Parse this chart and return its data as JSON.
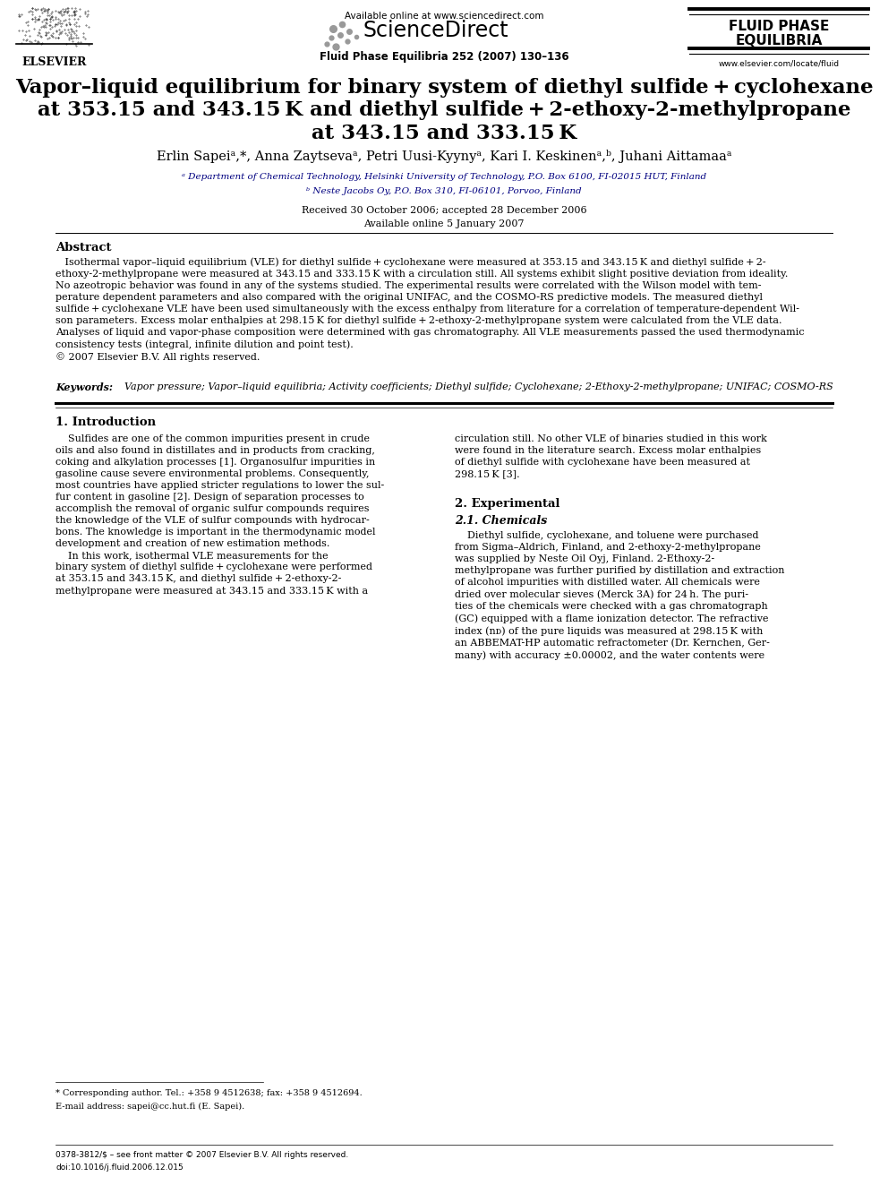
{
  "page_width": 9.92,
  "page_height": 13.23,
  "dpi": 100,
  "background_color": "#ffffff",
  "lm": 0.62,
  "rm": 0.62,
  "header": {
    "available_online": "Available online at www.sciencedirect.com",
    "journal_name": "Fluid Phase Equilibria 252 (2007) 130–136",
    "website": "www.elsevier.com/locate/fluid",
    "logo_line1": "FLUID PHASE",
    "logo_line2": "EQUILIBRIA"
  },
  "title_lines": [
    "Vapor–liquid equilibrium for binary system of diethyl sulfide + cyclohexane",
    "at 353.15 and 343.15 K and diethyl sulfide + 2-ethoxy-2-methylpropane",
    "at 343.15 and 333.15 K"
  ],
  "authors": "Erlin Sapeiᵃ,*, Anna Zaytsevaᵃ, Petri Uusi-Kyynyᵃ, Kari I. Keskinenᵃ,ᵇ, Juhani Aittamaaᵃ",
  "affil_a_color": "#000080",
  "affil_b_color": "#000080",
  "affil_a": "ᵃ Department of Chemical Technology, Helsinki University of Technology, P.O. Box 6100, FI-02015 HUT, Finland",
  "affil_b": "ᵇ Neste Jacobs Oy, P.O. Box 310, FI-06101, Porvoo, Finland",
  "received": "Received 30 October 2006; accepted 28 December 2006",
  "avail_online": "Available online 5 January 2007",
  "abstract_title": "Abstract",
  "abstract_body": "   Isothermal vapor–liquid equilibrium (VLE) for diethyl sulfide + cyclohexane were measured at 353.15 and 343.15 K and diethyl sulfide + 2-\nethoxy-2-methylpropane were measured at 343.15 and 333.15 K with a circulation still. All systems exhibit slight positive deviation from ideality.\nNo azeotropic behavior was found in any of the systems studied. The experimental results were correlated with the Wilson model with tem-\nperature dependent parameters and also compared with the original UNIFAC, and the COSMO-RS predictive models. The measured diethyl\nsulfide + cyclohexane VLE have been used simultaneously with the excess enthalpy from literature for a correlation of temperature-dependent Wil-\nson parameters. Excess molar enthalpies at 298.15 K for diethyl sulfide + 2-ethoxy-2-methylpropane system were calculated from the VLE data.\nAnalyses of liquid and vapor-phase composition were determined with gas chromatography. All VLE measurements passed the used thermodynamic\nconsistency tests (integral, infinite dilution and point test).\n© 2007 Elsevier B.V. All rights reserved.",
  "kw_label": "Keywords:",
  "kw_text": "  Vapor pressure; Vapor–liquid equilibria; Activity coefficients; Diethyl sulfide; Cyclohexane; 2-Ethoxy-2-methylpropane; UNIFAC; COSMO-RS",
  "sec1_title": "1. Introduction",
  "sec1_col1": "    Sulfides are one of the common impurities present in crude\noils and also found in distillates and in products from cracking,\ncoking and alkylation processes [1]. Organosulfur impurities in\ngasoline cause severe environmental problems. Consequently,\nmost countries have applied stricter regulations to lower the sul-\nfur content in gasoline [2]. Design of separation processes to\naccomplish the removal of organic sulfur compounds requires\nthe knowledge of the VLE of sulfur compounds with hydrocar-\nbons. The knowledge is important in the thermodynamic model\ndevelopment and creation of new estimation methods.\n    In this work, isothermal VLE measurements for the\nbinary system of diethyl sulfide + cyclohexane were performed\nat 353.15 and 343.15 K, and diethyl sulfide + 2-ethoxy-2-\nmethylpropane were measured at 343.15 and 333.15 K with a",
  "sec1_col2": "circulation still. No other VLE of binaries studied in this work\nwere found in the literature search. Excess molar enthalpies\nof diethyl sulfide with cyclohexane have been measured at\n298.15 K [3].",
  "sec2_title": "2. Experimental",
  "sec21_title": "2.1. Chemicals",
  "sec21_col2": "    Diethyl sulfide, cyclohexane, and toluene were purchased\nfrom Sigma–Aldrich, Finland, and 2-ethoxy-2-methylpropane\nwas supplied by Neste Oil Oyj, Finland. 2-Ethoxy-2-\nmethylpropane was further purified by distillation and extraction\nof alcohol impurities with distilled water. All chemicals were\ndried over molecular sieves (Merck 3A) for 24 h. The puri-\nties of the chemicals were checked with a gas chromatograph\n(GC) equipped with a flame ionization detector. The refractive\nindex (nᴅ) of the pure liquids was measured at 298.15 K with\nan ABBEMAT-HP automatic refractometer (Dr. Kernchen, Ger-\nmany) with accuracy ±0.00002, and the water contents were",
  "footnote1": "* Corresponding author. Tel.: +358 9 4512638; fax: +358 9 4512694.",
  "footnote2": "E-mail address: sapei@cc.hut.fi (E. Sapei).",
  "bottom_issn": "0378-3812/$ – see front matter © 2007 Elsevier B.V. All rights reserved.",
  "bottom_doi": "doi:10.1016/j.fluid.2006.12.015"
}
